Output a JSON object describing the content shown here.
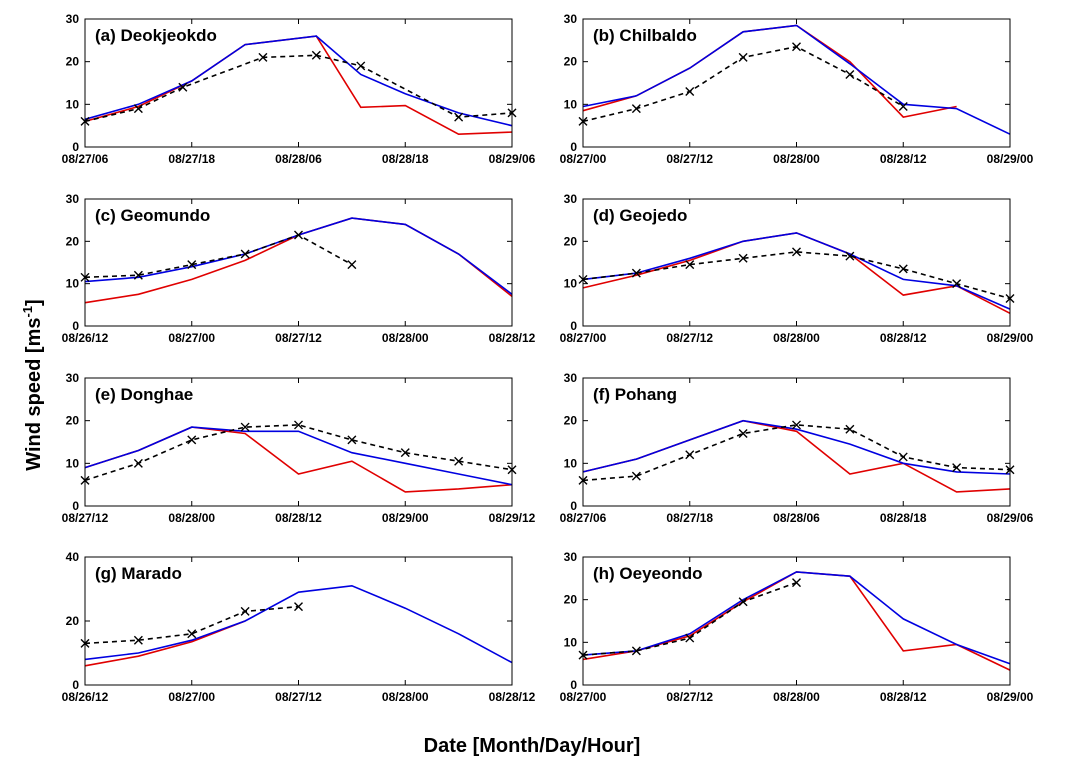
{
  "ylabel": [
    "Wind speed [ms",
    "-1",
    "]"
  ],
  "xlabel": "Date [Month/Day/Hour]",
  "chart_data": [
    {
      "type": "line",
      "title": "(a) Deokjeokdo",
      "ylim": [
        0,
        30
      ],
      "yticks": [
        0,
        10,
        20,
        30
      ],
      "xlim": [
        "08/27/06",
        "08/29/06"
      ],
      "xticks": [
        "08/27/06",
        "08/27/18",
        "08/28/06",
        "08/28/18",
        "08/29/06"
      ],
      "series": [
        {
          "color": "#e00000",
          "dash": false,
          "x": [
            "08/27/06",
            "08/27/12",
            "08/27/18",
            "08/28/00",
            "08/28/08",
            "08/28/13",
            "08/28/18",
            "08/29/00",
            "08/29/06"
          ],
          "values": [
            6,
            9.5,
            15.5,
            24,
            26,
            9.3,
            9.7,
            3,
            3.5
          ]
        },
        {
          "color": "#0000e0",
          "dash": false,
          "x": [
            "08/27/06",
            "08/27/12",
            "08/27/18",
            "08/28/00",
            "08/28/08",
            "08/28/13",
            "08/28/18",
            "08/29/00",
            "08/29/06"
          ],
          "values": [
            6.5,
            10,
            15.5,
            24,
            26,
            17,
            12.5,
            8,
            5
          ]
        },
        {
          "color": "#000000",
          "dash": true,
          "marker": "x",
          "x": [
            "08/27/06",
            "08/27/12",
            "08/27/17",
            "08/28/02",
            "08/28/08",
            "08/28/13",
            "08/29/00",
            "08/29/06"
          ],
          "values": [
            6,
            9,
            14,
            21,
            21.5,
            19,
            7,
            8
          ]
        }
      ]
    },
    {
      "type": "line",
      "title": "(b) Chilbaldo",
      "ylim": [
        0,
        30
      ],
      "yticks": [
        0,
        10,
        20,
        30
      ],
      "xlim": [
        "08/27/00",
        "08/29/00"
      ],
      "xticks": [
        "08/27/00",
        "08/27/12",
        "08/28/00",
        "08/28/12",
        "08/29/00"
      ],
      "series": [
        {
          "color": "#e00000",
          "dash": false,
          "x": [
            "08/27/00",
            "08/27/06",
            "08/27/12",
            "08/27/18",
            "08/28/00",
            "08/28/06",
            "08/28/12",
            "08/28/18"
          ],
          "values": [
            8.5,
            12,
            18.5,
            27,
            28.5,
            20,
            7,
            9.5
          ]
        },
        {
          "color": "#0000e0",
          "dash": false,
          "x": [
            "08/27/00",
            "08/27/06",
            "08/27/12",
            "08/27/18",
            "08/28/00",
            "08/28/06",
            "08/28/12",
            "08/28/18",
            "08/29/00"
          ],
          "values": [
            9.5,
            12,
            18.5,
            27,
            28.5,
            19.5,
            10,
            9,
            3
          ]
        },
        {
          "color": "#000000",
          "dash": true,
          "marker": "x",
          "x": [
            "08/27/00",
            "08/27/06",
            "08/27/12",
            "08/27/18",
            "08/28/00",
            "08/28/06",
            "08/28/12"
          ],
          "values": [
            6,
            9,
            13,
            21,
            23.5,
            17,
            9.5
          ]
        }
      ]
    },
    {
      "type": "line",
      "title": "(c) Geomundo",
      "ylim": [
        0,
        30
      ],
      "yticks": [
        0,
        10,
        20,
        30
      ],
      "xlim": [
        "08/26/12",
        "08/28/12"
      ],
      "xticks": [
        "08/26/12",
        "08/27/00",
        "08/27/12",
        "08/28/00",
        "08/28/12"
      ],
      "series": [
        {
          "color": "#e00000",
          "dash": false,
          "x": [
            "08/26/12",
            "08/26/18",
            "08/27/00",
            "08/27/06",
            "08/27/12",
            "08/27/18",
            "08/28/00",
            "08/28/06",
            "08/28/12"
          ],
          "values": [
            5.5,
            7.5,
            11,
            15.5,
            21.5,
            25.5,
            24,
            17,
            7
          ]
        },
        {
          "color": "#0000e0",
          "dash": false,
          "x": [
            "08/26/12",
            "08/26/18",
            "08/27/00",
            "08/27/06",
            "08/27/12",
            "08/27/18",
            "08/28/00",
            "08/28/06",
            "08/28/12"
          ],
          "values": [
            10.5,
            11.5,
            14,
            17,
            21.5,
            25.5,
            24,
            17,
            7.5
          ]
        },
        {
          "color": "#000000",
          "dash": true,
          "marker": "x",
          "x": [
            "08/26/12",
            "08/26/18",
            "08/27/00",
            "08/27/06",
            "08/27/12",
            "08/27/18"
          ],
          "values": [
            11.5,
            12,
            14.5,
            17,
            21.5,
            14.5
          ]
        }
      ]
    },
    {
      "type": "line",
      "title": "(d) Geojedo",
      "ylim": [
        0,
        30
      ],
      "yticks": [
        0,
        10,
        20,
        30
      ],
      "xlim": [
        "08/27/00",
        "08/29/00"
      ],
      "xticks": [
        "08/27/00",
        "08/27/12",
        "08/28/00",
        "08/28/12",
        "08/29/00"
      ],
      "series": [
        {
          "color": "#e00000",
          "dash": false,
          "x": [
            "08/27/00",
            "08/27/06",
            "08/27/12",
            "08/27/18",
            "08/28/00",
            "08/28/06",
            "08/28/12",
            "08/28/18",
            "08/29/00"
          ],
          "values": [
            9,
            12,
            15.5,
            20,
            22,
            17,
            7.3,
            9.5,
            3
          ]
        },
        {
          "color": "#0000e0",
          "dash": false,
          "x": [
            "08/27/00",
            "08/27/06",
            "08/27/12",
            "08/27/18",
            "08/28/00",
            "08/28/06",
            "08/28/12",
            "08/28/18",
            "08/29/00"
          ],
          "values": [
            11,
            12.5,
            16,
            20,
            22,
            17,
            11,
            9.5,
            4
          ]
        },
        {
          "color": "#000000",
          "dash": true,
          "marker": "x",
          "x": [
            "08/27/00",
            "08/27/06",
            "08/27/12",
            "08/27/18",
            "08/28/00",
            "08/28/06",
            "08/28/12",
            "08/28/18",
            "08/29/00"
          ],
          "values": [
            11,
            12.5,
            14.5,
            16,
            17.5,
            16.5,
            13.5,
            10,
            6.5
          ]
        }
      ]
    },
    {
      "type": "line",
      "title": "(e) Donghae",
      "ylim": [
        0,
        30
      ],
      "yticks": [
        0,
        10,
        20,
        30
      ],
      "xlim": [
        "08/27/12",
        "08/29/12"
      ],
      "xticks": [
        "08/27/12",
        "08/28/00",
        "08/28/12",
        "08/29/00",
        "08/29/12"
      ],
      "series": [
        {
          "color": "#e00000",
          "dash": false,
          "x": [
            "08/27/12",
            "08/27/18",
            "08/28/00",
            "08/28/06",
            "08/28/12",
            "08/28/18",
            "08/29/00",
            "08/29/06",
            "08/29/12"
          ],
          "values": [
            9,
            13,
            18.5,
            17,
            7.5,
            10.5,
            3.3,
            4,
            5
          ]
        },
        {
          "color": "#0000e0",
          "dash": false,
          "x": [
            "08/27/12",
            "08/27/18",
            "08/28/00",
            "08/28/06",
            "08/28/12",
            "08/28/18",
            "08/29/00",
            "08/29/06",
            "08/29/12"
          ],
          "values": [
            9,
            13,
            18.5,
            17.5,
            17.5,
            12.5,
            10,
            7.5,
            5
          ]
        },
        {
          "color": "#000000",
          "dash": true,
          "marker": "x",
          "x": [
            "08/27/12",
            "08/27/18",
            "08/28/00",
            "08/28/06",
            "08/28/12",
            "08/28/18",
            "08/29/00",
            "08/29/06",
            "08/29/12"
          ],
          "values": [
            6,
            10,
            15.5,
            18.5,
            19,
            15.5,
            12.5,
            10.5,
            8.5
          ]
        }
      ]
    },
    {
      "type": "line",
      "title": "(f) Pohang",
      "ylim": [
        0,
        30
      ],
      "yticks": [
        0,
        10,
        20,
        30
      ],
      "xlim": [
        "08/27/06",
        "08/29/06"
      ],
      "xticks": [
        "08/27/06",
        "08/27/18",
        "08/28/06",
        "08/28/18",
        "08/29/06"
      ],
      "series": [
        {
          "color": "#e00000",
          "dash": false,
          "x": [
            "08/27/06",
            "08/27/12",
            "08/27/18",
            "08/28/00",
            "08/28/06",
            "08/28/12",
            "08/28/18",
            "08/29/00",
            "08/29/06"
          ],
          "values": [
            8,
            11,
            15.5,
            20,
            17.5,
            7.5,
            10,
            3.3,
            4
          ]
        },
        {
          "color": "#0000e0",
          "dash": false,
          "x": [
            "08/27/06",
            "08/27/12",
            "08/27/18",
            "08/28/00",
            "08/28/06",
            "08/28/12",
            "08/28/18",
            "08/29/00",
            "08/29/06"
          ],
          "values": [
            8,
            11,
            15.5,
            20,
            18,
            14.5,
            10,
            8,
            7.5
          ]
        },
        {
          "color": "#000000",
          "dash": true,
          "marker": "x",
          "x": [
            "08/27/06",
            "08/27/12",
            "08/27/18",
            "08/28/00",
            "08/28/06",
            "08/28/12",
            "08/28/18",
            "08/29/00",
            "08/29/06"
          ],
          "values": [
            6,
            7,
            12,
            17,
            19,
            18,
            11.5,
            9,
            8.5
          ]
        }
      ]
    },
    {
      "type": "line",
      "title": "(g) Marado",
      "ylim": [
        0,
        40
      ],
      "yticks": [
        0,
        20,
        40
      ],
      "xlim": [
        "08/26/12",
        "08/28/12"
      ],
      "xticks": [
        "08/26/12",
        "08/27/00",
        "08/27/12",
        "08/28/00",
        "08/28/12"
      ],
      "series": [
        {
          "color": "#e00000",
          "dash": false,
          "x": [
            "08/26/12",
            "08/26/18",
            "08/27/00",
            "08/27/06"
          ],
          "values": [
            6,
            9,
            13.5,
            20
          ]
        },
        {
          "color": "#0000e0",
          "dash": false,
          "x": [
            "08/26/12",
            "08/26/18",
            "08/27/00",
            "08/27/06",
            "08/27/12",
            "08/27/18",
            "08/28/00",
            "08/28/06",
            "08/28/12"
          ],
          "values": [
            8,
            10,
            14,
            20,
            29,
            31,
            24,
            16,
            7
          ]
        },
        {
          "color": "#000000",
          "dash": true,
          "marker": "x",
          "x": [
            "08/26/12",
            "08/26/18",
            "08/27/00",
            "08/27/06",
            "08/27/12"
          ],
          "values": [
            13,
            14,
            16,
            23,
            24.5
          ]
        }
      ]
    },
    {
      "type": "line",
      "title": "(h) Oeyeondo",
      "ylim": [
        0,
        30
      ],
      "yticks": [
        0,
        10,
        20,
        30
      ],
      "xlim": [
        "08/27/00",
        "08/29/00"
      ],
      "xticks": [
        "08/27/00",
        "08/27/12",
        "08/28/00",
        "08/28/12",
        "08/29/00"
      ],
      "series": [
        {
          "color": "#e00000",
          "dash": false,
          "x": [
            "08/27/00",
            "08/27/06",
            "08/27/12",
            "08/27/18",
            "08/28/00",
            "08/28/06",
            "08/28/12",
            "08/28/18",
            "08/29/00"
          ],
          "values": [
            6,
            8,
            11.5,
            19.5,
            26.5,
            25.5,
            8,
            9.5,
            3.5
          ]
        },
        {
          "color": "#0000e0",
          "dash": false,
          "x": [
            "08/27/00",
            "08/27/06",
            "08/27/12",
            "08/27/18",
            "08/28/00",
            "08/28/06",
            "08/28/12",
            "08/28/18",
            "08/29/00"
          ],
          "values": [
            7,
            8,
            12,
            20,
            26.5,
            25.5,
            15.5,
            9.5,
            5
          ]
        },
        {
          "color": "#000000",
          "dash": true,
          "marker": "x",
          "x": [
            "08/27/00",
            "08/27/06",
            "08/27/12",
            "08/27/18",
            "08/28/00"
          ],
          "values": [
            7,
            8,
            11,
            19.5,
            24
          ]
        }
      ]
    }
  ]
}
